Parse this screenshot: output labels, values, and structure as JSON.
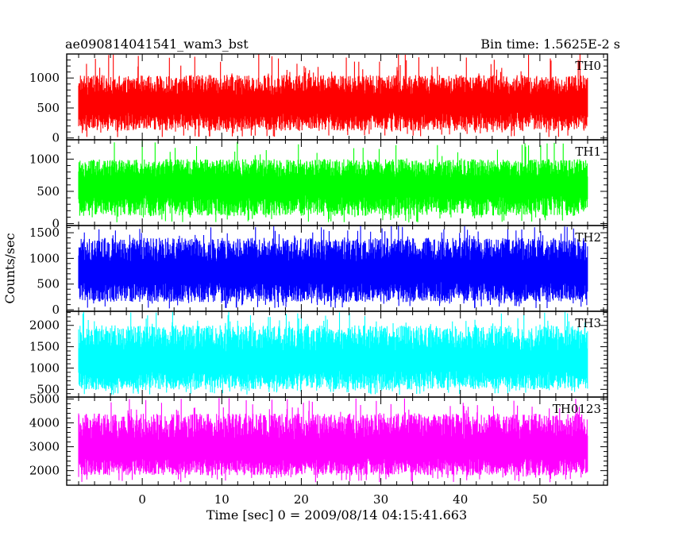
{
  "header": {
    "left_title": "ae090814041541_wam3_bst",
    "right_title": "Bin time: 1.5625E-2 s"
  },
  "chart_data": {
    "type": "line",
    "xlabel": "Time [sec] 0 = 2009/08/14 04:15:41.663",
    "ylabel": "Counts/sec",
    "xlim": [
      -9.5,
      58.5
    ],
    "x_ticks": [
      0,
      10,
      20,
      30,
      40,
      50
    ],
    "x_minor_step": 2,
    "data_x_range": [
      -8,
      56
    ],
    "grid": false,
    "panels": [
      {
        "name": "TH0",
        "color": "#ff0000",
        "ylim": [
          -30,
          1400
        ],
        "y_ticks": [
          0,
          500,
          1000
        ],
        "y_minor_step": 100,
        "baseline": 600,
        "typical_low": 120,
        "typical_high": 1050,
        "peak_max": 1400
      },
      {
        "name": "TH1",
        "color": "#00ff00",
        "ylim": [
          -30,
          1300
        ],
        "y_ticks": [
          0,
          500,
          1000
        ],
        "y_minor_step": 100,
        "baseline": 620,
        "typical_low": 120,
        "typical_high": 1000,
        "peak_max": 1300
      },
      {
        "name": "TH2",
        "color": "#0000ff",
        "ylim": [
          -30,
          1640
        ],
        "y_ticks": [
          0,
          500,
          1000,
          1500
        ],
        "y_minor_step": 100,
        "baseline": 760,
        "typical_low": 150,
        "typical_high": 1400,
        "peak_max": 1640
      },
      {
        "name": "TH3",
        "color": "#00ffff",
        "ylim": [
          320,
          2330
        ],
        "y_ticks": [
          500,
          1000,
          1500,
          2000
        ],
        "y_minor_step": 100,
        "baseline": 1180,
        "typical_low": 500,
        "typical_high": 2000,
        "peak_max": 2330
      },
      {
        "name": "TH0123",
        "color": "#ff00ff",
        "ylim": [
          1390,
          5080
        ],
        "y_ticks": [
          2000,
          3000,
          4000,
          5000
        ],
        "y_minor_step": 200,
        "baseline": 2900,
        "typical_low": 1800,
        "typical_high": 4400,
        "peak_max": 5080
      }
    ]
  }
}
